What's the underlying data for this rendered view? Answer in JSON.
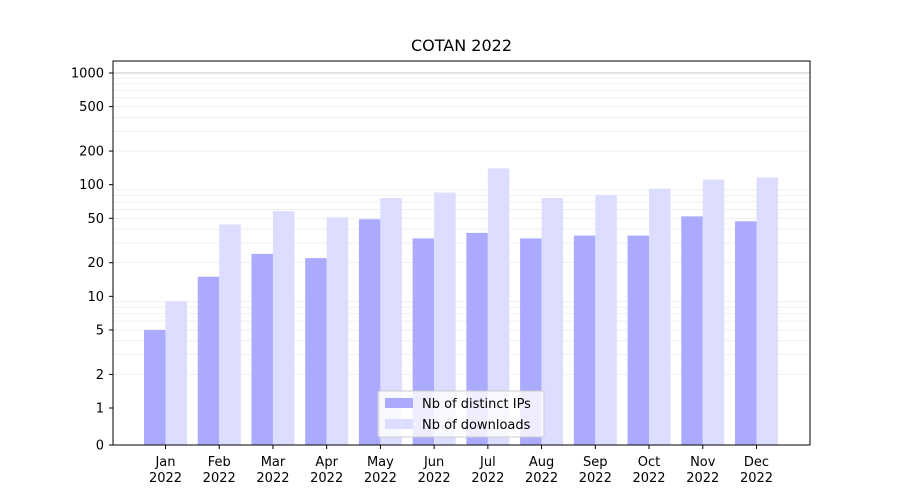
{
  "chart_data": {
    "type": "bar",
    "title": "COTAN 2022",
    "xlabel": "",
    "ylabel": "",
    "yscale": "symlog",
    "ylim": [
      0,
      1200
    ],
    "yticks": [
      0,
      1,
      2,
      5,
      10,
      20,
      50,
      100,
      200,
      500,
      1000
    ],
    "categories": [
      {
        "month": "Jan",
        "year": "2022"
      },
      {
        "month": "Feb",
        "year": "2022"
      },
      {
        "month": "Mar",
        "year": "2022"
      },
      {
        "month": "Apr",
        "year": "2022"
      },
      {
        "month": "May",
        "year": "2022"
      },
      {
        "month": "Jun",
        "year": "2022"
      },
      {
        "month": "Jul",
        "year": "2022"
      },
      {
        "month": "Aug",
        "year": "2022"
      },
      {
        "month": "Sep",
        "year": "2022"
      },
      {
        "month": "Oct",
        "year": "2022"
      },
      {
        "month": "Nov",
        "year": "2022"
      },
      {
        "month": "Dec",
        "year": "2022"
      }
    ],
    "series": [
      {
        "name": "Nb of distinct IPs",
        "color": "#aaaaff",
        "values": [
          5,
          15,
          24,
          22,
          49,
          33,
          37,
          33,
          35,
          35,
          52,
          47
        ]
      },
      {
        "name": "Nb of downloads",
        "color": "#ddddff",
        "values": [
          9,
          44,
          58,
          51,
          76,
          85,
          140,
          76,
          81,
          92,
          111,
          116
        ]
      }
    ],
    "grid": true,
    "legend_position": "bottom-center"
  }
}
